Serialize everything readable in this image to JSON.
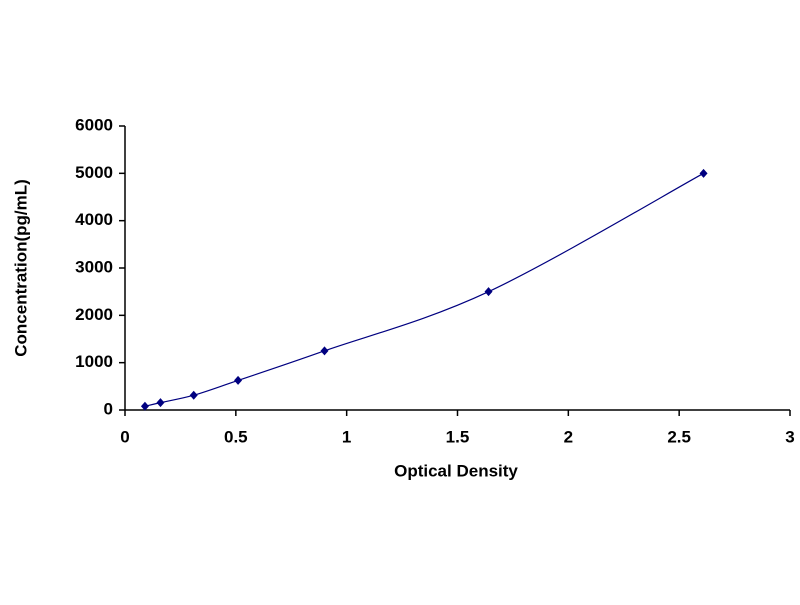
{
  "chart_data": {
    "type": "scatter",
    "x_label": "Optical Density",
    "y_label": "Concentration(pg/mL)",
    "series": [
      {
        "color": "#000080",
        "line": "smooth",
        "marker": "diamond",
        "x": [
          0.09,
          0.16,
          0.31,
          0.51,
          0.9,
          1.64,
          2.61
        ],
        "values": [
          78,
          156,
          312,
          625,
          1250,
          2500,
          5000
        ]
      }
    ],
    "xlim": [
      0,
      3
    ],
    "xticks": [
      0,
      0.5,
      1,
      1.5,
      2,
      2.5,
      3
    ],
    "ylim": [
      0,
      6000
    ],
    "yticks": [
      0,
      1000,
      2000,
      3000,
      4000,
      5000,
      6000
    ],
    "grid": false
  }
}
